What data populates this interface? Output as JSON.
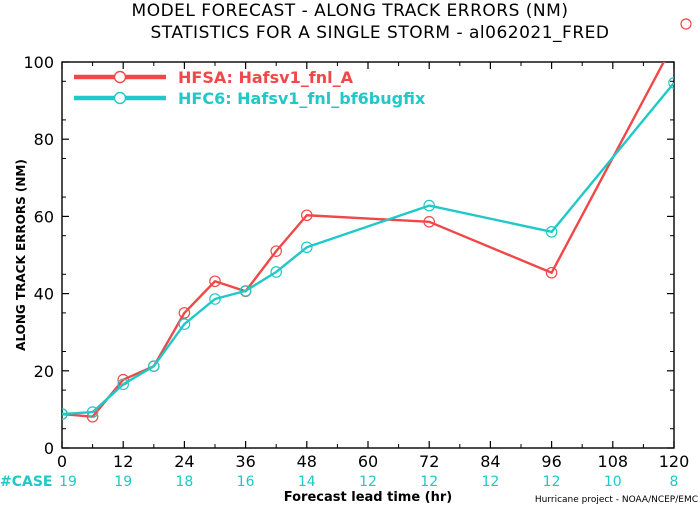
{
  "chart_data": {
    "type": "line",
    "title": "MODEL FORECAST - ALONG TRACK ERRORS (NM)",
    "subtitle": "STATISTICS FOR A SINGLE STORM - al062021_FRED",
    "xlabel": "Forecast lead time (hr)",
    "ylabel": "ALONG TRACK ERRORS (NM)",
    "xlim": [
      0,
      120
    ],
    "ylim": [
      0,
      100
    ],
    "x_ticks": [
      0,
      12,
      24,
      36,
      48,
      60,
      72,
      84,
      96,
      108,
      120
    ],
    "y_ticks": [
      0,
      20,
      40,
      60,
      80,
      100
    ],
    "case_label": "#CASE",
    "case_counts": [
      "19",
      "19",
      "18",
      "16",
      "14",
      "12",
      "12",
      "12",
      "12",
      "10",
      "8"
    ],
    "credit": "Hurricane project - NOAA/NCEP/EMC",
    "grid": false,
    "legend_position": "top-left",
    "series": [
      {
        "name": "HFSA: Hafsv1_fnl_A",
        "color": "#f04848",
        "x": [
          0,
          6,
          12,
          18,
          24,
          30,
          36,
          42,
          48,
          72,
          96,
          120
        ],
        "values": [
          8.8,
          8.1,
          17.7,
          21.2,
          35.0,
          43.2,
          40.6,
          51.0,
          60.3,
          58.6,
          45.4,
          105
        ]
      },
      {
        "name": "HFC6: Hafsv1_fnl_bf6bugfix",
        "color": "#20c8c8",
        "x": [
          0,
          6,
          12,
          18,
          24,
          30,
          36,
          42,
          48,
          72,
          96,
          120
        ],
        "values": [
          8.8,
          9.3,
          16.5,
          21.2,
          32.1,
          38.6,
          40.7,
          45.6,
          52.0,
          62.8,
          56.0,
          94.6
        ]
      }
    ]
  }
}
